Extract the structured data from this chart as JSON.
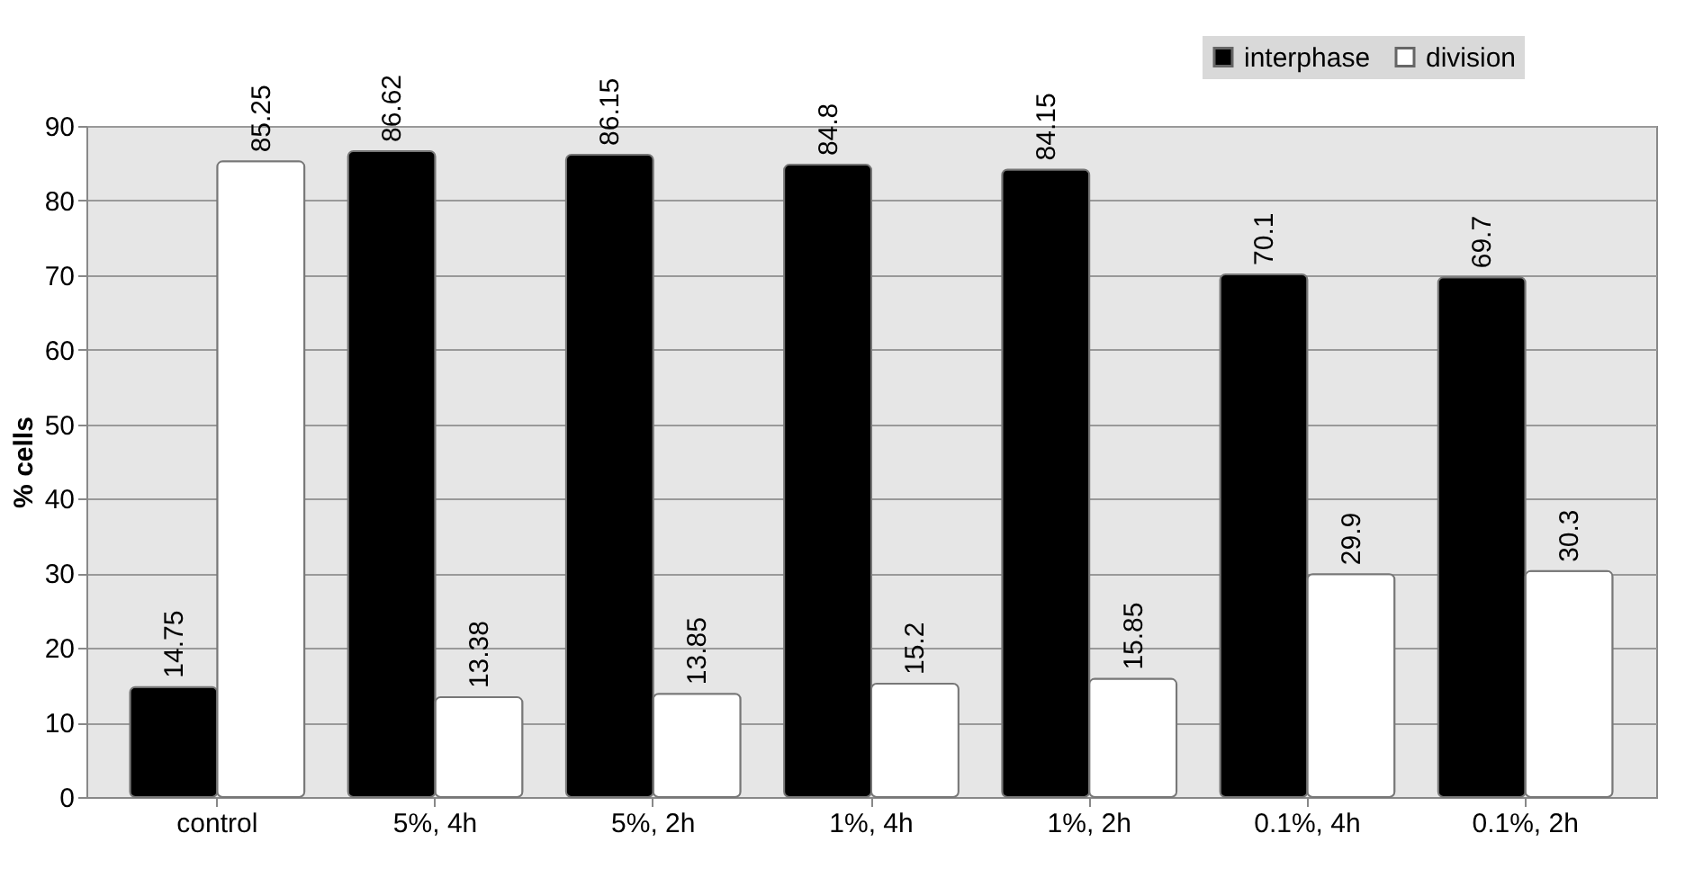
{
  "chart_data": {
    "type": "bar",
    "ylabel": "% cells",
    "categories": [
      "control",
      "5%, 4h",
      "5%, 2h",
      "1%, 4h",
      "1%, 2h",
      "0.1%, 4h",
      "0.1%, 2h"
    ],
    "series": [
      {
        "name": "interphase",
        "color": "#000000",
        "values": [
          14.75,
          86.62,
          86.15,
          84.8,
          84.15,
          70.1,
          69.7
        ]
      },
      {
        "name": "division",
        "color": "#ffffff",
        "values": [
          85.25,
          13.38,
          13.85,
          15.2,
          15.85,
          29.9,
          30.3
        ]
      }
    ],
    "ylim": [
      0,
      90
    ],
    "yticks": [
      0,
      10,
      20,
      30,
      40,
      50,
      60,
      70,
      80,
      90
    ],
    "grid": "y",
    "legend": "top right",
    "data_labels": true
  }
}
